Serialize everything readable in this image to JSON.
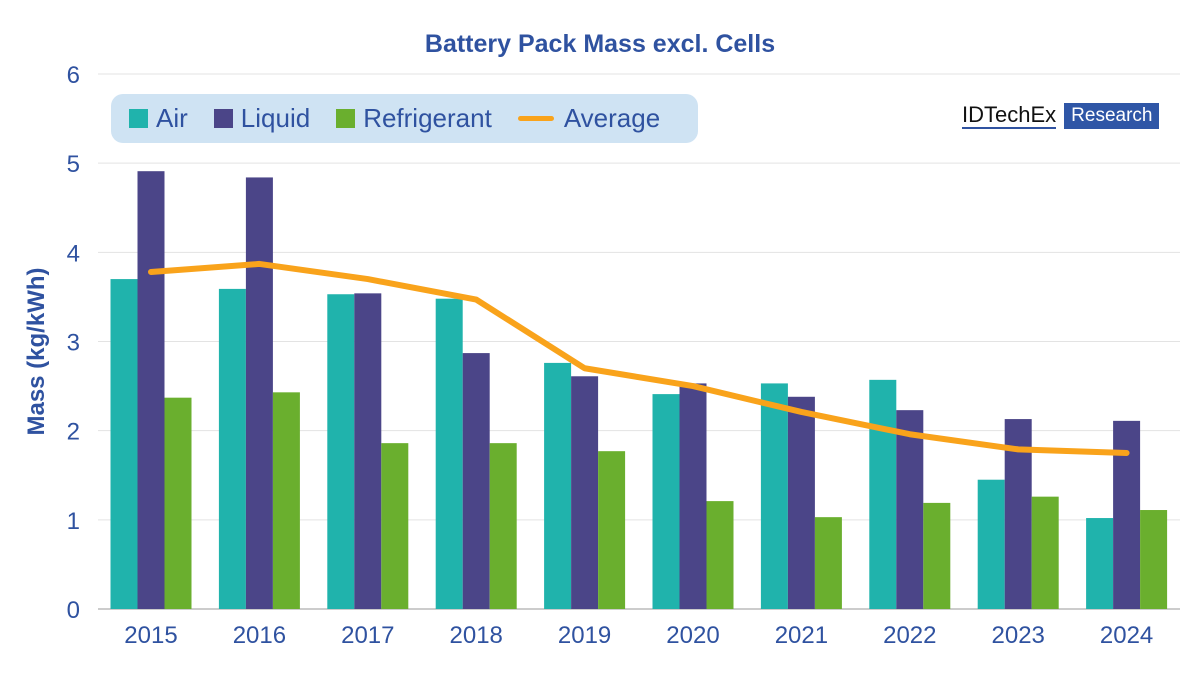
{
  "chart_data": {
    "type": "bar",
    "title": "Battery Pack Mass excl. Cells",
    "ylabel": "Mass (kg/kWh)",
    "xlabel": "",
    "ylim": [
      0,
      6
    ],
    "yticks": [
      "0",
      "1",
      "2",
      "3",
      "4",
      "5",
      "6"
    ],
    "grid": true,
    "legend_placement": "top-left",
    "categories": [
      "2015",
      "2016",
      "2017",
      "2018",
      "2019",
      "2020",
      "2021",
      "2022",
      "2023",
      "2024"
    ],
    "series": [
      {
        "name": "Air",
        "type": "bar",
        "color": "#20b3ac",
        "values": [
          3.7,
          3.59,
          3.53,
          3.48,
          2.76,
          2.41,
          2.53,
          2.57,
          1.45,
          1.02
        ]
      },
      {
        "name": "Liquid",
        "type": "bar",
        "color": "#4b4588",
        "values": [
          4.91,
          4.84,
          3.54,
          2.87,
          2.61,
          2.53,
          2.38,
          2.23,
          2.13,
          2.11
        ]
      },
      {
        "name": "Refrigerant",
        "type": "bar",
        "color": "#6aaf2e",
        "values": [
          2.37,
          2.43,
          1.86,
          1.86,
          1.77,
          1.21,
          1.03,
          1.19,
          1.26,
          1.11
        ]
      },
      {
        "name": "Average",
        "type": "line",
        "color": "#f9a31b",
        "values": [
          3.78,
          3.87,
          3.7,
          3.47,
          2.7,
          2.5,
          2.21,
          1.96,
          1.79,
          1.75
        ]
      }
    ]
  },
  "logo": {
    "name": "IDTechEx",
    "tag": "Research"
  }
}
